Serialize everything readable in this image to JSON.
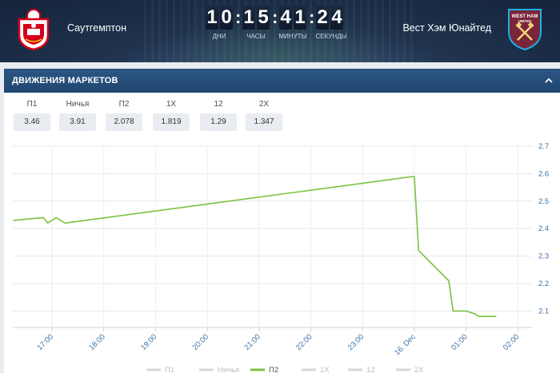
{
  "match": {
    "home_team": "Саутгемптон",
    "away_team": "Вест Хэм Юнайтед",
    "home_crest_icon": "southampton-crest-icon",
    "away_crest_icon": "west-ham-crest-icon",
    "away_crest_text": [
      "WEST HAM",
      "UNITED"
    ]
  },
  "countdown": {
    "days": [
      "1",
      "0"
    ],
    "hours": [
      "1",
      "5"
    ],
    "minutes": [
      "4",
      "1"
    ],
    "seconds": [
      "2",
      "4"
    ],
    "labels": {
      "days": "ДНИ",
      "hours": "ЧАСЫ",
      "minutes": "МИНУТЫ",
      "seconds": "СЕКУНДЫ"
    }
  },
  "panel": {
    "title": "ДВИЖЕНИЯ МАРКЕТОВ",
    "collapse_icon": "chevron-up-icon"
  },
  "odds": [
    {
      "label": "П1",
      "value": "3.46"
    },
    {
      "label": "Ничья",
      "value": "3.91"
    },
    {
      "label": "П2",
      "value": "2.078"
    },
    {
      "label": "1X",
      "value": "1.819"
    },
    {
      "label": "12",
      "value": "1.29"
    },
    {
      "label": "2X",
      "value": "1.347"
    }
  ],
  "colors": {
    "accent_line": "#7cc142",
    "header_bar": "#1f4670",
    "axis_text": "#3b73a8"
  },
  "chart_data": {
    "type": "line",
    "x_ticks": [
      "17:00",
      "18:00",
      "19:00",
      "20:00",
      "21:00",
      "22:00",
      "23:00",
      "16. Dec",
      "01:00",
      "02:00"
    ],
    "y_ticks": [
      2.1,
      2.2,
      2.3,
      2.4,
      2.5,
      2.6,
      2.7
    ],
    "ylim": [
      2.04,
      2.7
    ],
    "grid": true,
    "y_axis_side": "right",
    "legend_position": "bottom",
    "legend": [
      "П1",
      "Ничья",
      "П2",
      "1X",
      "12",
      "2X"
    ],
    "active_series": "П2",
    "series": [
      {
        "name": "П2",
        "color": "#7cc142",
        "points": [
          [
            "16:15",
            2.43
          ],
          [
            "16:50",
            2.44
          ],
          [
            "16:55",
            2.42
          ],
          [
            "17:05",
            2.44
          ],
          [
            "17:15",
            2.42
          ],
          [
            "00:00",
            2.59
          ],
          [
            "00:05",
            2.32
          ],
          [
            "00:40",
            2.21
          ],
          [
            "00:45",
            2.1
          ],
          [
            "01:00",
            2.1
          ],
          [
            "01:10",
            2.09
          ],
          [
            "01:15",
            2.08
          ],
          [
            "01:35",
            2.08
          ]
        ]
      }
    ]
  }
}
